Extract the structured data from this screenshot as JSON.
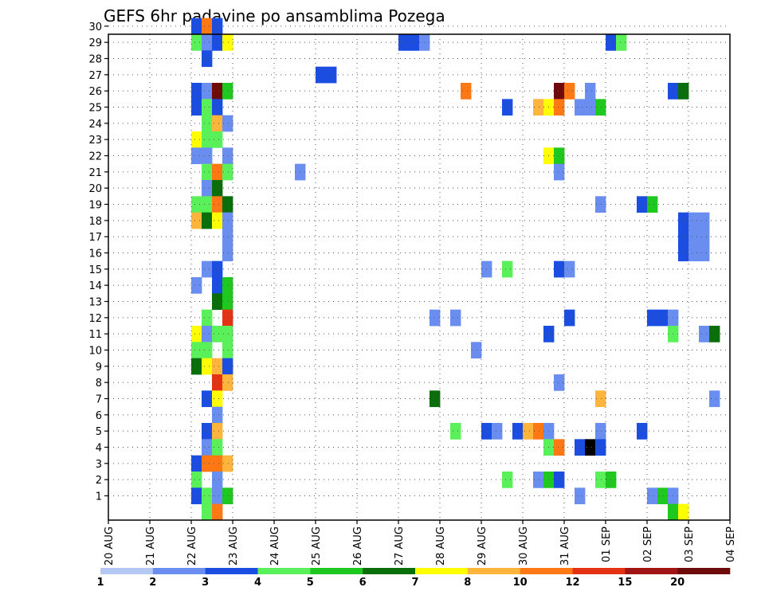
{
  "chart_data": {
    "type": "heatmap",
    "title": "GEFS 6hr padavine po ansamblima Pozega",
    "xlabel": "",
    "ylabel": "",
    "x_ticks": [
      "20 AUG",
      "21 AUG",
      "22 AUG",
      "23 AUG",
      "24 AUG",
      "25 AUG",
      "26 AUG",
      "27 AUG",
      "28 AUG",
      "29 AUG",
      "30 AUG",
      "31 AUG",
      "01 SEP",
      "02 SEP",
      "03 SEP",
      "04 SEP"
    ],
    "y_ticks": [
      1,
      2,
      3,
      4,
      5,
      6,
      7,
      8,
      9,
      10,
      11,
      12,
      13,
      14,
      15,
      16,
      17,
      18,
      19,
      20,
      21,
      22,
      23,
      24,
      25,
      26,
      27,
      28,
      29,
      30
    ],
    "time_step_hours": 6,
    "steps_total": 60,
    "grid": true,
    "colorbar": {
      "placement": "bottom",
      "levels": [
        1,
        2,
        3,
        4,
        5,
        6,
        7,
        8,
        10,
        12,
        15,
        20
      ],
      "labels": [
        "1",
        "2",
        "3",
        "4",
        "5",
        "6",
        "7",
        "8",
        "10",
        "12",
        "15",
        "20"
      ],
      "colors": [
        "#b4c8f5",
        "#6a8ef0",
        "#1a4de0",
        "#5af05a",
        "#1ec81e",
        "#0a6e0a",
        "#ffff00",
        "#ffb43c",
        "#ff7814",
        "#e63214",
        "#a01414",
        "#6e0a0a"
      ]
    },
    "cells": [
      [
        8,
        30,
        2
      ],
      [
        9,
        30,
        8
      ],
      [
        10,
        30,
        2
      ],
      [
        8,
        29,
        3
      ],
      [
        9,
        29,
        1
      ],
      [
        10,
        29,
        2
      ],
      [
        11,
        29,
        6
      ],
      [
        28,
        29,
        2
      ],
      [
        29,
        29,
        2
      ],
      [
        30,
        29,
        1
      ],
      [
        48,
        29,
        2
      ],
      [
        49,
        29,
        3
      ],
      [
        9,
        28,
        2
      ],
      [
        20,
        27,
        2
      ],
      [
        21,
        27,
        2
      ],
      [
        8,
        26,
        2
      ],
      [
        9,
        26,
        1
      ],
      [
        10,
        26,
        11
      ],
      [
        11,
        26,
        4
      ],
      [
        34,
        26,
        8
      ],
      [
        43,
        26,
        11
      ],
      [
        44,
        26,
        8
      ],
      [
        46,
        26,
        1
      ],
      [
        54,
        26,
        2
      ],
      [
        55,
        26,
        5
      ],
      [
        8,
        25,
        2
      ],
      [
        9,
        25,
        3
      ],
      [
        10,
        25,
        2
      ],
      [
        38,
        25,
        2
      ],
      [
        41,
        25,
        7
      ],
      [
        42,
        25,
        6
      ],
      [
        43,
        25,
        8
      ],
      [
        45,
        25,
        1
      ],
      [
        46,
        25,
        1
      ],
      [
        47,
        25,
        4
      ],
      [
        9,
        24,
        3
      ],
      [
        10,
        24,
        7
      ],
      [
        11,
        24,
        1
      ],
      [
        8,
        23,
        6
      ],
      [
        9,
        23,
        3
      ],
      [
        10,
        23,
        3
      ],
      [
        8,
        22,
        1
      ],
      [
        9,
        22,
        1
      ],
      [
        11,
        22,
        1
      ],
      [
        42,
        22,
        6
      ],
      [
        43,
        22,
        4
      ],
      [
        9,
        21,
        3
      ],
      [
        10,
        21,
        8
      ],
      [
        11,
        21,
        3
      ],
      [
        18,
        21,
        1
      ],
      [
        43,
        21,
        1
      ],
      [
        9,
        20,
        1
      ],
      [
        10,
        20,
        5
      ],
      [
        8,
        19,
        3
      ],
      [
        9,
        19,
        3
      ],
      [
        10,
        19,
        8
      ],
      [
        11,
        19,
        5
      ],
      [
        47,
        19,
        1
      ],
      [
        51,
        19,
        2
      ],
      [
        52,
        19,
        4
      ],
      [
        8,
        18,
        7
      ],
      [
        9,
        18,
        5
      ],
      [
        10,
        18,
        6
      ],
      [
        11,
        18,
        1
      ],
      [
        55,
        18,
        2
      ],
      [
        56,
        18,
        1
      ],
      [
        57,
        18,
        1
      ],
      [
        11,
        17,
        1
      ],
      [
        55,
        17,
        2
      ],
      [
        56,
        17,
        1
      ],
      [
        57,
        17,
        1
      ],
      [
        11,
        16,
        1
      ],
      [
        55,
        16,
        2
      ],
      [
        56,
        16,
        1
      ],
      [
        57,
        16,
        1
      ],
      [
        9,
        15,
        1
      ],
      [
        10,
        15,
        2
      ],
      [
        36,
        15,
        1
      ],
      [
        38,
        15,
        3
      ],
      [
        43,
        15,
        2
      ],
      [
        44,
        15,
        1
      ],
      [
        8,
        14,
        1
      ],
      [
        10,
        14,
        2
      ],
      [
        11,
        14,
        4
      ],
      [
        10,
        13,
        5
      ],
      [
        11,
        13,
        4
      ],
      [
        9,
        12,
        3
      ],
      [
        11,
        12,
        9
      ],
      [
        31,
        12,
        1
      ],
      [
        33,
        12,
        1
      ],
      [
        44,
        12,
        2
      ],
      [
        52,
        12,
        2
      ],
      [
        53,
        12,
        2
      ],
      [
        54,
        12,
        1
      ],
      [
        8,
        11,
        6
      ],
      [
        9,
        11,
        1
      ],
      [
        10,
        11,
        3
      ],
      [
        11,
        11,
        3
      ],
      [
        42,
        11,
        2
      ],
      [
        54,
        11,
        3
      ],
      [
        57,
        11,
        1
      ],
      [
        58,
        11,
        5
      ],
      [
        8,
        10,
        3
      ],
      [
        9,
        10,
        3
      ],
      [
        11,
        10,
        3
      ],
      [
        35,
        10,
        1
      ],
      [
        8,
        9,
        5
      ],
      [
        9,
        9,
        6
      ],
      [
        10,
        9,
        7
      ],
      [
        11,
        9,
        2
      ],
      [
        10,
        8,
        9
      ],
      [
        11,
        8,
        7
      ],
      [
        43,
        8,
        1
      ],
      [
        9,
        7,
        2
      ],
      [
        10,
        7,
        6
      ],
      [
        31,
        7,
        5
      ],
      [
        47,
        7,
        7
      ],
      [
        58,
        7,
        1
      ],
      [
        10,
        6,
        1
      ],
      [
        9,
        5,
        2
      ],
      [
        10,
        5,
        7
      ],
      [
        33,
        5,
        3
      ],
      [
        36,
        5,
        2
      ],
      [
        37,
        5,
        1
      ],
      [
        39,
        5,
        2
      ],
      [
        40,
        5,
        7
      ],
      [
        41,
        5,
        8
      ],
      [
        42,
        5,
        1
      ],
      [
        47,
        5,
        1
      ],
      [
        51,
        5,
        2
      ],
      [
        9,
        4,
        1
      ],
      [
        10,
        4,
        3
      ],
      [
        42,
        4,
        3
      ],
      [
        43,
        4,
        8
      ],
      [
        45,
        4,
        2
      ],
      [
        46,
        4,
        12
      ],
      [
        47,
        4,
        2
      ],
      [
        8,
        3,
        2
      ],
      [
        9,
        3,
        8
      ],
      [
        10,
        3,
        8
      ],
      [
        11,
        3,
        7
      ],
      [
        8,
        2,
        3
      ],
      [
        10,
        2,
        1
      ],
      [
        38,
        2,
        3
      ],
      [
        41,
        2,
        1
      ],
      [
        42,
        2,
        4
      ],
      [
        43,
        2,
        2
      ],
      [
        47,
        2,
        3
      ],
      [
        48,
        2,
        4
      ],
      [
        8,
        1,
        2
      ],
      [
        9,
        1,
        3
      ],
      [
        10,
        1,
        1
      ],
      [
        11,
        1,
        4
      ],
      [
        45,
        1,
        1
      ],
      [
        52,
        1,
        1
      ],
      [
        53,
        1,
        4
      ],
      [
        54,
        1,
        1
      ],
      [
        9,
        0,
        3
      ],
      [
        10,
        0,
        8
      ],
      [
        54,
        0,
        4
      ],
      [
        55,
        0,
        6
      ]
    ]
  }
}
